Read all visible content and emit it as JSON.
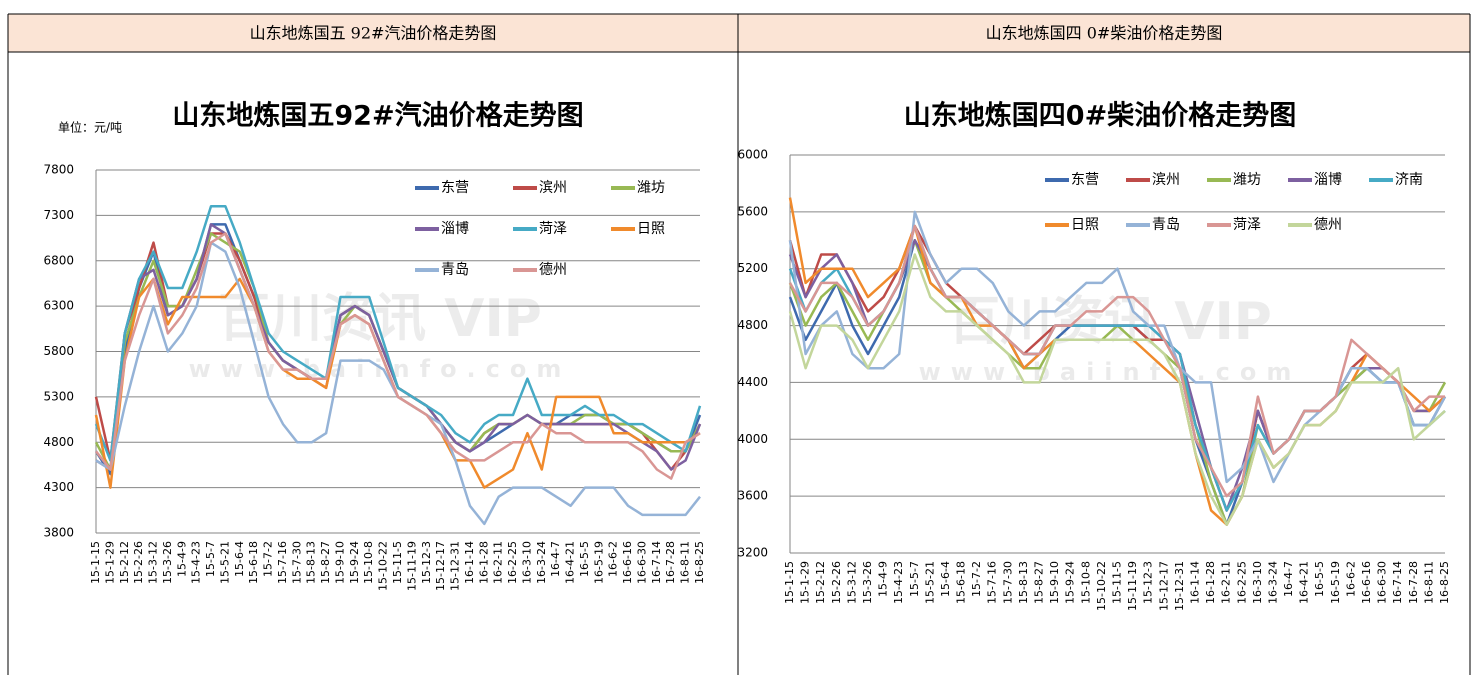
{
  "header": [
    "山东地炼国五 92#汽油价格走势图",
    "山东地炼国四 0#柴油价格走势图"
  ],
  "chart_data": [
    {
      "type": "line",
      "title": "山东地炼国五92#汽油价格走势图",
      "unit_label": "单位：元/吨",
      "watermark": [
        "百川资讯 VIP",
        "www.baiinfo.com"
      ],
      "categories": [
        "15-1-15",
        "15-1-29",
        "15-2-12",
        "15-2-26",
        "15-3-12",
        "15-3-26",
        "15-4-9",
        "15-4-23",
        "15-5-7",
        "15-5-21",
        "15-6-4",
        "15-6-18",
        "15-7-2",
        "15-7-16",
        "15-7-30",
        "15-8-13",
        "15-8-27",
        "15-9-10",
        "15-9-24",
        "15-10-8",
        "15-10-22",
        "15-11-5",
        "15-11-19",
        "15-12-3",
        "15-12-17",
        "15-12-31",
        "16-1-14",
        "16-1-28",
        "16-2-11",
        "16-2-25",
        "16-3-10",
        "16-3-24",
        "16-4-7",
        "16-4-21",
        "16-5-5",
        "16-5-19",
        "16-6-2",
        "16-6-16",
        "16-6-30",
        "16-7-14",
        "16-7-28",
        "16-8-11",
        "16-8-25"
      ],
      "ylim": [
        3800,
        7800
      ],
      "yticks": [
        3800,
        4300,
        4800,
        5300,
        5800,
        6300,
        6800,
        7300,
        7800
      ],
      "grid": true,
      "series": [
        {
          "name": "东营",
          "color": "#3e6aae",
          "values": [
            4700,
            4450,
            5800,
            6500,
            6900,
            6200,
            6300,
            6600,
            7200,
            7200,
            6800,
            6400,
            5900,
            5700,
            5600,
            5500,
            5500,
            6200,
            6300,
            6200,
            5800,
            5400,
            5300,
            5200,
            5000,
            4800,
            4700,
            4800,
            4900,
            5000,
            5100,
            5000,
            5000,
            5100,
            5100,
            5100,
            5000,
            5000,
            4900,
            4800,
            4700,
            4700,
            5100
          ]
        },
        {
          "name": "滨州",
          "color": "#be4b48",
          "values": [
            5300,
            4600,
            6000,
            6500,
            7000,
            6300,
            6300,
            6600,
            7100,
            7100,
            6800,
            6400,
            5900,
            5700,
            5600,
            5500,
            5400,
            6200,
            6300,
            6200,
            5800,
            5400,
            5300,
            5200,
            5000,
            4800,
            4700,
            4900,
            5000,
            5000,
            5100,
            5000,
            5000,
            5000,
            5000,
            5000,
            5000,
            5000,
            4900,
            4700,
            4500,
            4700,
            5000
          ]
        },
        {
          "name": "潍坊",
          "color": "#98b954",
          "values": [
            4800,
            4500,
            5900,
            6400,
            6800,
            6300,
            6300,
            6700,
            7100,
            7000,
            6900,
            6500,
            5900,
            5700,
            5600,
            5500,
            5500,
            6100,
            6300,
            6200,
            5800,
            5400,
            5300,
            5200,
            5000,
            4800,
            4700,
            4900,
            5000,
            5000,
            5100,
            5000,
            5000,
            5000,
            5100,
            5100,
            5000,
            5000,
            4900,
            4800,
            4700,
            4700,
            5000
          ]
        },
        {
          "name": "淄博",
          "color": "#7d60a0",
          "values": [
            4600,
            4500,
            6000,
            6600,
            6700,
            6200,
            6300,
            6600,
            7200,
            7100,
            6700,
            6300,
            5900,
            5700,
            5600,
            5500,
            5500,
            6200,
            6300,
            6200,
            5800,
            5400,
            5300,
            5200,
            5000,
            4800,
            4700,
            4800,
            5000,
            5000,
            5100,
            5000,
            5000,
            5000,
            5000,
            5000,
            5000,
            4900,
            4800,
            4700,
            4500,
            4600,
            5000
          ]
        },
        {
          "name": "菏泽",
          "color": "#46aac5",
          "values": [
            5000,
            4600,
            6000,
            6600,
            6900,
            6500,
            6500,
            6900,
            7400,
            7400,
            7000,
            6500,
            6000,
            5800,
            5700,
            5600,
            5500,
            6400,
            6400,
            6400,
            5900,
            5400,
            5300,
            5200,
            5100,
            4900,
            4800,
            5000,
            5100,
            5100,
            5500,
            5100,
            5100,
            5100,
            5200,
            5100,
            5100,
            5000,
            5000,
            4900,
            4800,
            4700,
            5200
          ]
        },
        {
          "name": "日照",
          "color": "#f08a2c",
          "values": [
            5100,
            4300,
            5700,
            6400,
            6600,
            6100,
            6400,
            6400,
            6400,
            6400,
            6600,
            6300,
            5800,
            5600,
            5500,
            5500,
            5400,
            6100,
            6200,
            6100,
            5700,
            5300,
            5200,
            5100,
            4900,
            4600,
            4600,
            4300,
            4400,
            4500,
            4900,
            4500,
            5300,
            5300,
            5300,
            5300,
            4900,
            4900,
            4800,
            4800,
            4800,
            4800,
            4900
          ]
        },
        {
          "name": "青岛",
          "color": "#95b3d7",
          "values": [
            4600,
            4500,
            5200,
            5800,
            6300,
            5800,
            6000,
            6300,
            7000,
            6900,
            6500,
            5900,
            5300,
            5000,
            4800,
            4800,
            4900,
            5700,
            5700,
            5700,
            5600,
            5300,
            5200,
            5100,
            5000,
            4600,
            4100,
            3900,
            4200,
            4300,
            4300,
            4300,
            4200,
            4100,
            4300,
            4300,
            4300,
            4100,
            4000,
            4000,
            4000,
            4000,
            4200
          ]
        },
        {
          "name": "德州",
          "color": "#d99694",
          "values": [
            4700,
            4500,
            5700,
            6200,
            6600,
            6000,
            6200,
            6500,
            7000,
            7100,
            6700,
            6300,
            5800,
            5600,
            5600,
            5500,
            5500,
            6100,
            6200,
            6100,
            5700,
            5300,
            5200,
            5100,
            4900,
            4700,
            4600,
            4600,
            4700,
            4800,
            4800,
            5000,
            4900,
            4900,
            4800,
            4800,
            4800,
            4800,
            4700,
            4500,
            4400,
            4800,
            4900
          ]
        }
      ]
    },
    {
      "type": "line",
      "title": "山东地炼国四0#柴油价格走势图",
      "watermark": [
        "百川资讯 VIP",
        "www.baiinfo.com"
      ],
      "categories": [
        "15-1-15",
        "15-1-29",
        "15-2-12",
        "15-2-26",
        "15-3-12",
        "15-3-26",
        "15-4-9",
        "15-4-23",
        "15-5-7",
        "15-5-21",
        "15-6-4",
        "15-6-18",
        "15-7-2",
        "15-7-16",
        "15-7-30",
        "15-8-13",
        "15-8-27",
        "15-9-10",
        "15-9-24",
        "15-10-8",
        "15-10-22",
        "15-11-5",
        "15-11-19",
        "15-12-3",
        "15-12-17",
        "15-12-31",
        "16-1-14",
        "16-1-28",
        "16-2-11",
        "16-2-25",
        "16-3-10",
        "16-3-24",
        "16-4-7",
        "16-4-21",
        "16-5-5",
        "16-5-19",
        "16-6-2",
        "16-6-16",
        "16-6-30",
        "16-7-14",
        "16-7-28",
        "16-8-11",
        "16-8-25"
      ],
      "ylim": [
        3200,
        6000
      ],
      "yticks": [
        3200,
        3600,
        4000,
        4400,
        4800,
        5200,
        5600,
        6000
      ],
      "grid": true,
      "series": [
        {
          "name": "东营",
          "color": "#3e6aae",
          "values": [
            5000,
            4700,
            4900,
            5100,
            4800,
            4600,
            4800,
            5000,
            5400,
            5200,
            5000,
            5000,
            4900,
            4800,
            4700,
            4500,
            4600,
            4700,
            4800,
            4800,
            4800,
            4800,
            4800,
            4700,
            4700,
            4500,
            4000,
            3700,
            3400,
            3700,
            4200,
            3900,
            4000,
            4200,
            4200,
            4300,
            4400,
            4500,
            4400,
            4400,
            4100,
            4100,
            4300
          ]
        },
        {
          "name": "滨州",
          "color": "#be4b48",
          "values": [
            5400,
            5000,
            5300,
            5300,
            5100,
            4900,
            5000,
            5200,
            5500,
            5300,
            5100,
            5000,
            4900,
            4800,
            4700,
            4600,
            4700,
            4800,
            4800,
            4800,
            4800,
            4800,
            4800,
            4700,
            4700,
            4600,
            4100,
            3800,
            3500,
            3700,
            4200,
            3900,
            4000,
            4200,
            4200,
            4300,
            4500,
            4600,
            4500,
            4400,
            4200,
            4200,
            4300
          ]
        },
        {
          "name": "潍坊",
          "color": "#98b954",
          "values": [
            5100,
            4800,
            5000,
            5100,
            4900,
            4700,
            4900,
            5100,
            5400,
            5100,
            5000,
            4900,
            4800,
            4700,
            4600,
            4500,
            4500,
            4700,
            4700,
            4700,
            4700,
            4800,
            4700,
            4700,
            4600,
            4500,
            4100,
            3700,
            3400,
            3600,
            4100,
            3900,
            4000,
            4200,
            4200,
            4300,
            4400,
            4500,
            4500,
            4400,
            4200,
            4200,
            4400
          ]
        },
        {
          "name": "淄博",
          "color": "#7d60a0",
          "values": [
            5300,
            5000,
            5200,
            5300,
            5100,
            4800,
            4900,
            5100,
            5400,
            5200,
            5000,
            5000,
            4900,
            4800,
            4700,
            4600,
            4600,
            4800,
            4800,
            4800,
            4800,
            4800,
            4800,
            4800,
            4700,
            4600,
            4200,
            3800,
            3500,
            3800,
            4200,
            3900,
            4000,
            4200,
            4200,
            4300,
            4500,
            4500,
            4500,
            4400,
            4200,
            4200,
            4300
          ]
        },
        {
          "name": "济南",
          "color": "#46aac5",
          "values": [
            5200,
            4900,
            5100,
            5200,
            5000,
            4800,
            4900,
            5100,
            5500,
            5200,
            5000,
            5000,
            4900,
            4800,
            4700,
            4600,
            4600,
            4800,
            4800,
            4800,
            4800,
            4800,
            4800,
            4800,
            4700,
            4600,
            4100,
            3800,
            3500,
            3700,
            4100,
            3900,
            4000,
            4200,
            4200,
            4300,
            4500,
            4500,
            4400,
            4400,
            4100,
            4100,
            4200
          ]
        },
        {
          "name": "日照",
          "color": "#f08a2c",
          "values": [
            5700,
            5100,
            5200,
            5200,
            5200,
            5000,
            5100,
            5200,
            5500,
            5100,
            5000,
            5000,
            4800,
            4800,
            4700,
            4500,
            4600,
            4700,
            4700,
            4700,
            4700,
            4700,
            4700,
            4600,
            4500,
            4400,
            3900,
            3500,
            3400,
            3600,
            4000,
            3800,
            3900,
            4100,
            4100,
            4200,
            4400,
            4600,
            4500,
            4400,
            4300,
            4200,
            4300
          ]
        },
        {
          "name": "青岛",
          "color": "#95b3d7",
          "values": [
            5400,
            4600,
            4800,
            4900,
            4600,
            4500,
            4500,
            4600,
            5600,
            5300,
            5100,
            5200,
            5200,
            5100,
            4900,
            4800,
            4900,
            4900,
            5000,
            5100,
            5100,
            5200,
            4900,
            4800,
            4800,
            4500,
            4400,
            4400,
            3700,
            3800,
            4000,
            3700,
            3900,
            4100,
            4200,
            4300,
            4500,
            4500,
            4400,
            4400,
            4100,
            4100,
            4300
          ]
        },
        {
          "name": "菏泽",
          "color": "#d99694",
          "values": [
            5100,
            4900,
            5100,
            5100,
            5000,
            4800,
            4900,
            5100,
            5500,
            5200,
            5000,
            5000,
            4900,
            4800,
            4700,
            4600,
            4600,
            4800,
            4800,
            4900,
            4900,
            5000,
            5000,
            4900,
            4700,
            4500,
            4000,
            3800,
            3600,
            3700,
            4300,
            3900,
            4000,
            4200,
            4200,
            4300,
            4700,
            4600,
            4500,
            4400,
            4200,
            4300,
            4300
          ]
        },
        {
          "name": "德州",
          "color": "#c3d69b",
          "values": [
            4900,
            4500,
            4800,
            4800,
            4700,
            4500,
            4700,
            4900,
            5300,
            5000,
            4900,
            4900,
            4800,
            4700,
            4600,
            4400,
            4400,
            4700,
            4700,
            4700,
            4700,
            4700,
            4700,
            4700,
            4600,
            4400,
            3900,
            3600,
            3400,
            3600,
            4000,
            3800,
            3900,
            4100,
            4100,
            4200,
            4400,
            4400,
            4400,
            4500,
            4000,
            4100,
            4200
          ]
        }
      ]
    }
  ]
}
